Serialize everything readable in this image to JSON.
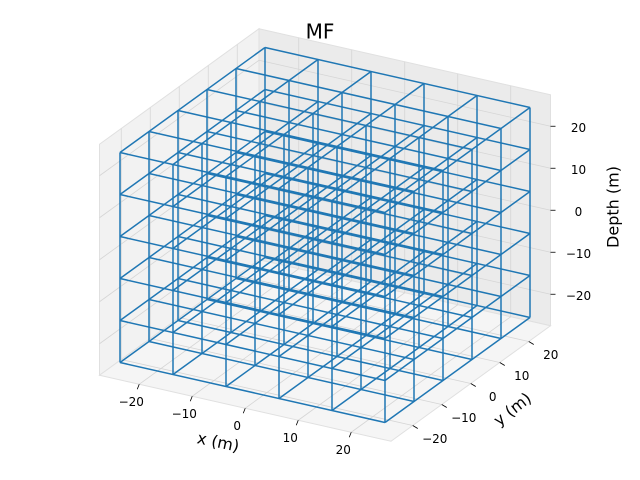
{
  "chart_data": {
    "type": "wireframe3d",
    "title": "MF",
    "xlabel": "x (m)",
    "ylabel": "y (m)",
    "zlabel": "Depth (m)",
    "color": "#1f77b4",
    "x_nodes": [
      -25,
      -15,
      -5,
      5,
      15,
      25
    ],
    "y_nodes": [
      -25,
      -15,
      -5,
      5,
      15,
      25
    ],
    "z_nodes": [
      -25,
      -15,
      -5,
      5,
      15,
      25
    ],
    "xlim": [
      -27.5,
      27.5
    ],
    "ylim": [
      -27.5,
      27.5
    ],
    "zlim": [
      -27.5,
      27.5
    ],
    "xticks": [
      {
        "value": -20,
        "label": "−20"
      },
      {
        "value": -10,
        "label": "−10"
      },
      0,
      10,
      20
    ],
    "yticks": [
      {
        "value": -20,
        "label": "−20"
      },
      {
        "value": -10,
        "label": "−10"
      },
      0,
      10,
      20
    ],
    "zticks": [
      {
        "value": -20,
        "label": "−20"
      },
      {
        "value": -10,
        "label": "−10"
      },
      0,
      10,
      20
    ],
    "grid": true
  }
}
